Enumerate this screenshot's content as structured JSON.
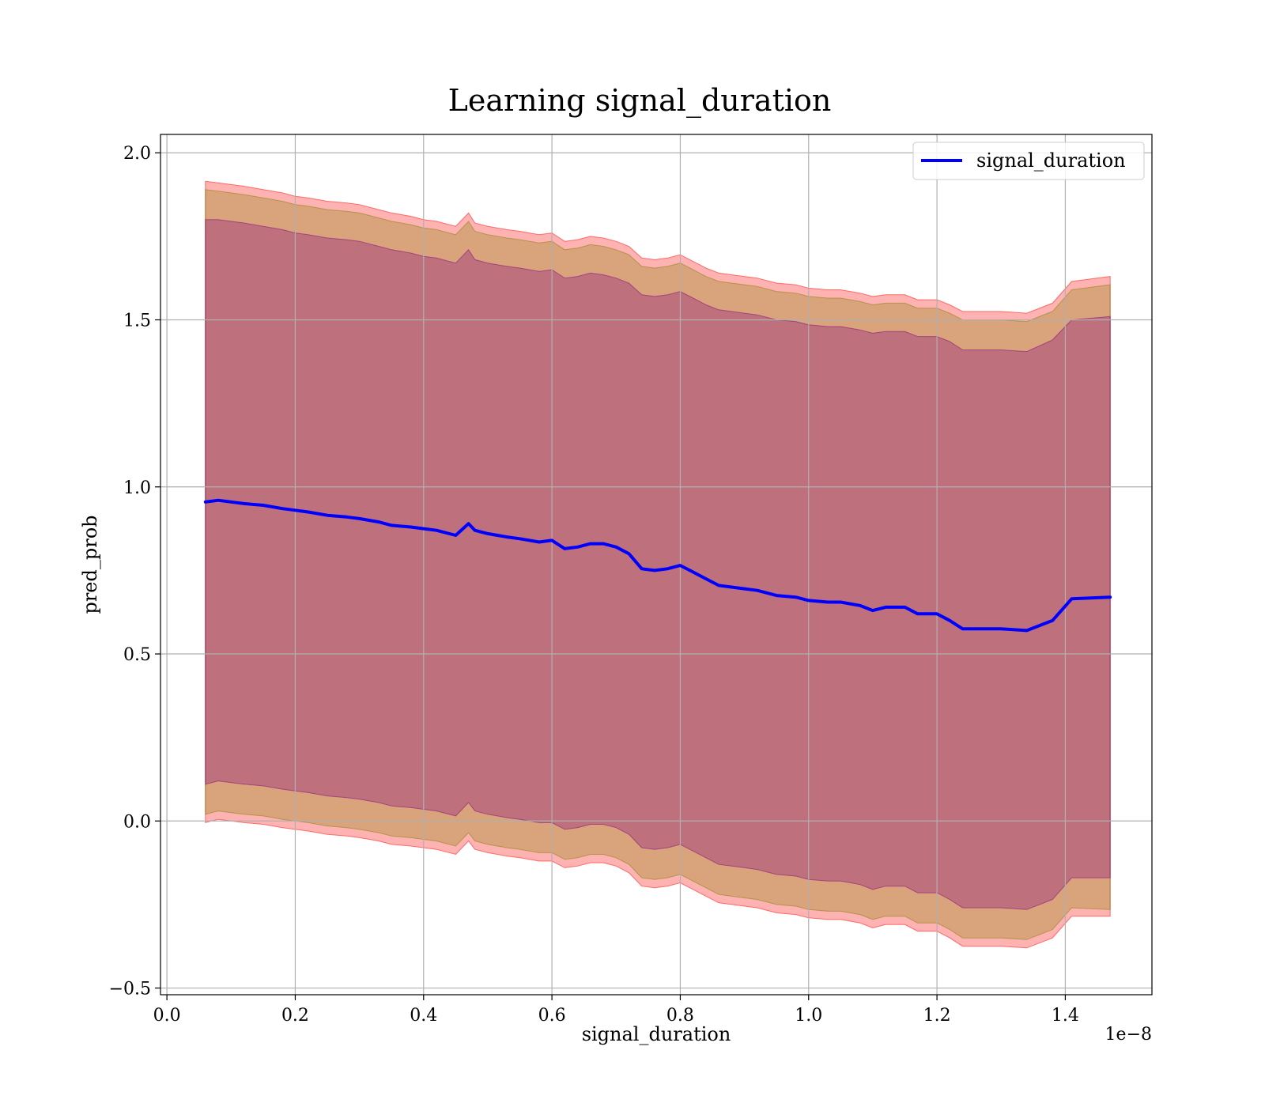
{
  "chart_data": {
    "type": "area",
    "title": "Learning signal_duration",
    "xlabel": "signal_duration",
    "ylabel": "pred_prob",
    "x_offset_label": "1e−8",
    "xlim": [
      -0.01,
      1.535
    ],
    "ylim": [
      -0.52,
      2.055
    ],
    "x_ticks": [
      0.0,
      0.2,
      0.4,
      0.6,
      0.8,
      1.0,
      1.2,
      1.4
    ],
    "x_tick_labels": [
      "0.0",
      "0.2",
      "0.4",
      "0.6",
      "0.8",
      "1.0",
      "1.2",
      "1.4"
    ],
    "y_ticks": [
      -0.5,
      0.0,
      0.5,
      1.0,
      1.5,
      2.0
    ],
    "y_tick_labels": [
      "−0.5",
      "0.0",
      "0.5",
      "1.0",
      "1.5",
      "2.0"
    ],
    "grid": true,
    "legend_position": "top-right",
    "legend": [
      "signal_duration"
    ],
    "x": [
      0.06,
      0.08,
      0.1,
      0.12,
      0.15,
      0.18,
      0.2,
      0.22,
      0.25,
      0.28,
      0.3,
      0.33,
      0.35,
      0.38,
      0.4,
      0.42,
      0.45,
      0.47,
      0.48,
      0.5,
      0.53,
      0.55,
      0.58,
      0.6,
      0.62,
      0.64,
      0.66,
      0.68,
      0.7,
      0.72,
      0.74,
      0.76,
      0.78,
      0.8,
      0.82,
      0.84,
      0.86,
      0.88,
      0.9,
      0.92,
      0.95,
      0.98,
      1.0,
      1.03,
      1.05,
      1.08,
      1.1,
      1.12,
      1.15,
      1.17,
      1.2,
      1.22,
      1.24,
      1.26,
      1.3,
      1.34,
      1.38,
      1.41,
      1.47
    ],
    "series": [
      {
        "name": "signal_duration",
        "color": "#0000ff",
        "values": [
          0.955,
          0.96,
          0.955,
          0.95,
          0.945,
          0.935,
          0.93,
          0.925,
          0.915,
          0.91,
          0.905,
          0.895,
          0.885,
          0.88,
          0.875,
          0.87,
          0.855,
          0.89,
          0.87,
          0.86,
          0.85,
          0.845,
          0.835,
          0.84,
          0.815,
          0.82,
          0.83,
          0.83,
          0.82,
          0.8,
          0.755,
          0.75,
          0.755,
          0.765,
          0.745,
          0.725,
          0.705,
          0.7,
          0.695,
          0.69,
          0.675,
          0.67,
          0.66,
          0.655,
          0.655,
          0.645,
          0.63,
          0.64,
          0.64,
          0.62,
          0.62,
          0.6,
          0.575,
          0.575,
          0.575,
          0.57,
          0.6,
          0.665,
          0.67
        ]
      }
    ],
    "bands": [
      {
        "color": "#ff0000",
        "opacity": 0.3,
        "upper": [
          1.915,
          1.91,
          1.905,
          1.9,
          1.89,
          1.88,
          1.87,
          1.865,
          1.855,
          1.85,
          1.845,
          1.83,
          1.82,
          1.81,
          1.8,
          1.795,
          1.78,
          1.82,
          1.79,
          1.78,
          1.77,
          1.765,
          1.755,
          1.76,
          1.735,
          1.74,
          1.75,
          1.745,
          1.735,
          1.72,
          1.685,
          1.68,
          1.685,
          1.695,
          1.675,
          1.655,
          1.64,
          1.635,
          1.63,
          1.625,
          1.61,
          1.605,
          1.595,
          1.59,
          1.59,
          1.58,
          1.57,
          1.575,
          1.575,
          1.56,
          1.56,
          1.545,
          1.525,
          1.525,
          1.525,
          1.52,
          1.55,
          1.615,
          1.63
        ],
        "lower": [
          -0.005,
          0.005,
          0.0,
          -0.005,
          -0.01,
          -0.02,
          -0.025,
          -0.03,
          -0.04,
          -0.045,
          -0.05,
          -0.06,
          -0.07,
          -0.075,
          -0.08,
          -0.085,
          -0.1,
          -0.06,
          -0.085,
          -0.095,
          -0.105,
          -0.11,
          -0.12,
          -0.12,
          -0.14,
          -0.135,
          -0.125,
          -0.125,
          -0.135,
          -0.155,
          -0.195,
          -0.2,
          -0.195,
          -0.185,
          -0.205,
          -0.225,
          -0.245,
          -0.25,
          -0.255,
          -0.26,
          -0.275,
          -0.28,
          -0.29,
          -0.295,
          -0.295,
          -0.305,
          -0.32,
          -0.31,
          -0.31,
          -0.33,
          -0.33,
          -0.35,
          -0.375,
          -0.375,
          -0.375,
          -0.38,
          -0.35,
          -0.285,
          -0.285
        ]
      },
      {
        "color": "#808000",
        "opacity": 0.3,
        "upper": [
          1.89,
          1.885,
          1.88,
          1.875,
          1.865,
          1.855,
          1.845,
          1.84,
          1.83,
          1.825,
          1.82,
          1.805,
          1.795,
          1.785,
          1.775,
          1.77,
          1.755,
          1.795,
          1.765,
          1.755,
          1.745,
          1.74,
          1.73,
          1.735,
          1.71,
          1.715,
          1.725,
          1.72,
          1.71,
          1.695,
          1.66,
          1.655,
          1.66,
          1.67,
          1.65,
          1.63,
          1.615,
          1.61,
          1.605,
          1.6,
          1.585,
          1.58,
          1.57,
          1.565,
          1.565,
          1.555,
          1.545,
          1.55,
          1.55,
          1.535,
          1.535,
          1.52,
          1.5,
          1.5,
          1.5,
          1.495,
          1.525,
          1.59,
          1.605
        ],
        "lower": [
          0.02,
          0.03,
          0.025,
          0.02,
          0.015,
          0.005,
          0.0,
          -0.005,
          -0.015,
          -0.02,
          -0.025,
          -0.035,
          -0.045,
          -0.05,
          -0.055,
          -0.06,
          -0.075,
          -0.035,
          -0.06,
          -0.07,
          -0.08,
          -0.085,
          -0.095,
          -0.095,
          -0.115,
          -0.11,
          -0.1,
          -0.1,
          -0.11,
          -0.13,
          -0.17,
          -0.175,
          -0.17,
          -0.16,
          -0.18,
          -0.2,
          -0.22,
          -0.225,
          -0.23,
          -0.235,
          -0.25,
          -0.255,
          -0.265,
          -0.27,
          -0.27,
          -0.28,
          -0.295,
          -0.285,
          -0.285,
          -0.305,
          -0.305,
          -0.325,
          -0.35,
          -0.35,
          -0.35,
          -0.355,
          -0.325,
          -0.26,
          -0.265
        ]
      },
      {
        "color": "#800080",
        "opacity": 0.3,
        "upper": [
          1.8,
          1.8,
          1.795,
          1.79,
          1.78,
          1.77,
          1.76,
          1.755,
          1.745,
          1.74,
          1.735,
          1.72,
          1.71,
          1.7,
          1.69,
          1.685,
          1.67,
          1.71,
          1.68,
          1.67,
          1.66,
          1.655,
          1.645,
          1.65,
          1.625,
          1.63,
          1.64,
          1.635,
          1.625,
          1.61,
          1.575,
          1.57,
          1.575,
          1.585,
          1.565,
          1.545,
          1.53,
          1.525,
          1.52,
          1.515,
          1.5,
          1.495,
          1.485,
          1.48,
          1.48,
          1.47,
          1.46,
          1.465,
          1.465,
          1.45,
          1.45,
          1.435,
          1.41,
          1.41,
          1.41,
          1.405,
          1.44,
          1.5,
          1.51
        ],
        "lower": [
          0.11,
          0.12,
          0.115,
          0.11,
          0.105,
          0.095,
          0.09,
          0.085,
          0.075,
          0.07,
          0.065,
          0.055,
          0.045,
          0.04,
          0.035,
          0.03,
          0.015,
          0.055,
          0.03,
          0.02,
          0.01,
          0.005,
          -0.005,
          -0.005,
          -0.025,
          -0.02,
          -0.01,
          -0.01,
          -0.02,
          -0.04,
          -0.08,
          -0.085,
          -0.08,
          -0.07,
          -0.09,
          -0.11,
          -0.13,
          -0.135,
          -0.14,
          -0.145,
          -0.16,
          -0.165,
          -0.175,
          -0.18,
          -0.18,
          -0.19,
          -0.205,
          -0.195,
          -0.195,
          -0.215,
          -0.215,
          -0.235,
          -0.26,
          -0.26,
          -0.26,
          -0.265,
          -0.235,
          -0.17,
          -0.17
        ]
      }
    ]
  }
}
